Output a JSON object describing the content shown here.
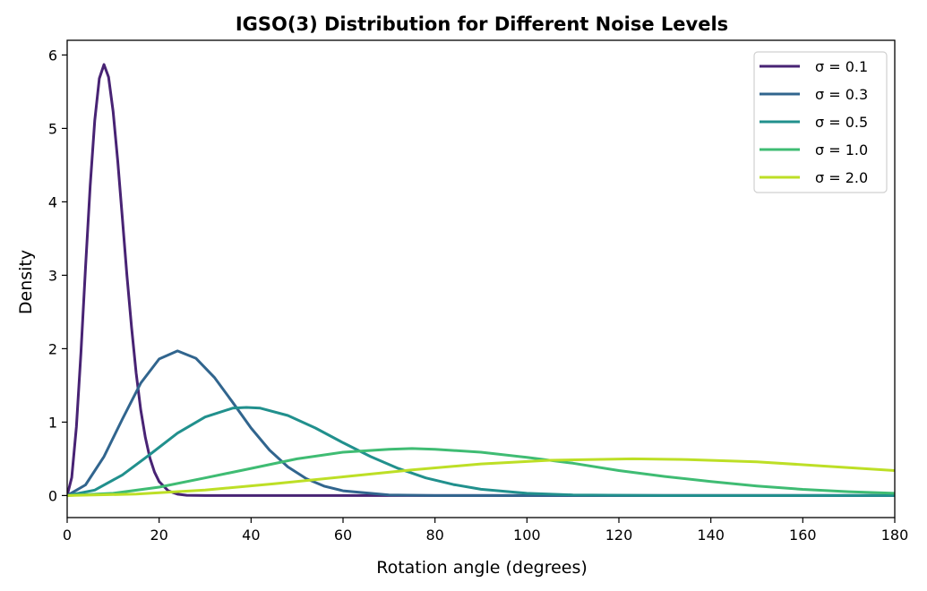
{
  "chart_data": {
    "type": "line",
    "title": "IGSO(3) Distribution for Different Noise Levels",
    "xlabel": "Rotation angle (degrees)",
    "ylabel": "Density",
    "xlim": [
      0,
      180
    ],
    "ylim": [
      -0.3,
      6.2
    ],
    "xticks": [
      0,
      20,
      40,
      60,
      80,
      100,
      120,
      140,
      160,
      180
    ],
    "yticks": [
      0,
      1,
      2,
      3,
      4,
      5,
      6
    ],
    "grid": false,
    "legend_position": "top-right",
    "series": [
      {
        "name": "σ = 0.1",
        "color": "#482374",
        "x": [
          0,
          1,
          2,
          3,
          4,
          5,
          6,
          7,
          8,
          9,
          10,
          11,
          12,
          13,
          14,
          15,
          16,
          17,
          18,
          19,
          20,
          22,
          24,
          26,
          30,
          180
        ],
        "y": [
          0,
          0.245,
          0.937,
          1.95,
          3.11,
          4.22,
          5.11,
          5.68,
          5.87,
          5.7,
          5.23,
          4.55,
          3.78,
          3.0,
          2.29,
          1.67,
          1.17,
          0.79,
          0.51,
          0.32,
          0.19,
          0.063,
          0.018,
          0.004,
          0,
          0
        ]
      },
      {
        "name": "σ = 0.3",
        "color": "#31658e",
        "x": [
          0,
          4,
          8,
          12,
          16,
          20,
          24,
          28,
          32,
          36,
          40,
          44,
          48,
          52,
          56,
          60,
          70,
          80,
          180
        ],
        "y": [
          0,
          0.145,
          0.53,
          1.04,
          1.53,
          1.86,
          1.97,
          1.87,
          1.61,
          1.27,
          0.92,
          0.62,
          0.39,
          0.23,
          0.126,
          0.065,
          0.009,
          0,
          0
        ]
      },
      {
        "name": "σ = 0.5",
        "color": "#21908d",
        "x": [
          0,
          6,
          12,
          18,
          24,
          30,
          36,
          39,
          42,
          48,
          54,
          60,
          66,
          72,
          78,
          84,
          90,
          100,
          110,
          130,
          180
        ],
        "y": [
          0,
          0.075,
          0.28,
          0.56,
          0.85,
          1.07,
          1.19,
          1.2,
          1.19,
          1.09,
          0.92,
          0.72,
          0.53,
          0.37,
          0.24,
          0.15,
          0.085,
          0.03,
          0.009,
          0,
          0
        ]
      },
      {
        "name": "σ = 1.0",
        "color": "#3fbc73",
        "x": [
          0,
          10,
          20,
          30,
          40,
          50,
          60,
          70,
          75,
          80,
          90,
          100,
          110,
          120,
          130,
          140,
          150,
          160,
          170,
          180
        ],
        "y": [
          0,
          0.03,
          0.115,
          0.24,
          0.37,
          0.5,
          0.59,
          0.63,
          0.64,
          0.63,
          0.59,
          0.52,
          0.44,
          0.34,
          0.26,
          0.19,
          0.13,
          0.084,
          0.052,
          0.03
        ]
      },
      {
        "name": "σ = 2.0",
        "color": "#bddf26",
        "x": [
          0,
          15,
          30,
          45,
          60,
          75,
          90,
          105,
          123,
          135,
          150,
          165,
          180
        ],
        "y": [
          0,
          0.02,
          0.076,
          0.16,
          0.255,
          0.35,
          0.43,
          0.48,
          0.5,
          0.49,
          0.46,
          0.4,
          0.34
        ]
      }
    ]
  }
}
